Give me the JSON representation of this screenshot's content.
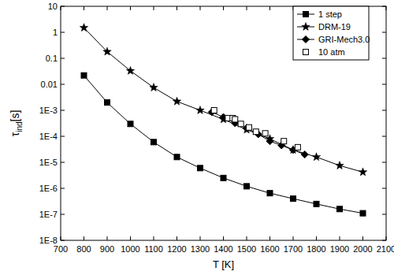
{
  "chart_data": {
    "type": "line",
    "x_label": "T [K]",
    "y_label": "τind[s]",
    "log": "y",
    "legend": "upper-right",
    "xlim": [
      700,
      2100
    ],
    "xticks": [
      700,
      800,
      900,
      1000,
      1100,
      1200,
      1300,
      1400,
      1500,
      1600,
      1700,
      1800,
      1900,
      2000,
      2100
    ],
    "ylim": [
      1e-08,
      10
    ],
    "yticks": [
      {
        "value": 1e-08,
        "label": "1E-8"
      },
      {
        "value": 1e-07,
        "label": "1E-7"
      },
      {
        "value": 1e-06,
        "label": "1E-6"
      },
      {
        "value": 1e-05,
        "label": "1E-5"
      },
      {
        "value": 0.0001,
        "label": "1E-4"
      },
      {
        "value": 0.001,
        "label": "1E-3"
      },
      0.01,
      0.1,
      1,
      10
    ],
    "series": [
      {
        "name": "1 step",
        "color": "#000000",
        "marker": "square",
        "line_style": "solid",
        "x": [
          800,
          900,
          1000,
          1100,
          1200,
          1300,
          1400,
          1500,
          1600,
          1700,
          1800,
          1900,
          2000
        ],
        "values": [
          0.022,
          0.002,
          0.0003,
          6e-05,
          1.6e-05,
          6e-06,
          2.5e-06,
          1.2e-06,
          6.5e-07,
          4e-07,
          2.5e-07,
          1.6e-07,
          1.1e-07
        ]
      },
      {
        "name": "DRM-19",
        "color": "#000000",
        "marker": "star",
        "line_style": "solid",
        "x": [
          800,
          900,
          1000,
          1100,
          1200,
          1300,
          1400,
          1500,
          1600,
          1700,
          1800,
          1900,
          2000
        ],
        "values": [
          1.5,
          0.18,
          0.033,
          0.0075,
          0.0022,
          0.001,
          0.00045,
          0.00018,
          8e-05,
          3e-05,
          1.6e-05,
          7.5e-06,
          4.2e-06
        ]
      },
      {
        "name": "GRI-Mech3.0",
        "color": "#000000",
        "marker": "diamond",
        "line_style": "solid",
        "x": [
          1350,
          1400,
          1450,
          1500,
          1550,
          1600,
          1650,
          1700,
          1750
        ],
        "values": [
          0.00085,
          0.00055,
          0.00032,
          0.00021,
          0.00012,
          6.5e-05,
          4.5e-05,
          3e-05,
          2e-05
        ]
      },
      {
        "name": "10 atm",
        "color": "#000000",
        "marker": "open-square",
        "line_style": "none",
        "x": [
          1360,
          1420,
          1440,
          1450,
          1475,
          1510,
          1540,
          1580,
          1660,
          1720
        ],
        "values": [
          0.001,
          0.0005,
          0.0005,
          0.00045,
          0.0003,
          0.00022,
          0.00015,
          0.00013,
          6.5e-05,
          3.8e-05
        ]
      }
    ]
  }
}
